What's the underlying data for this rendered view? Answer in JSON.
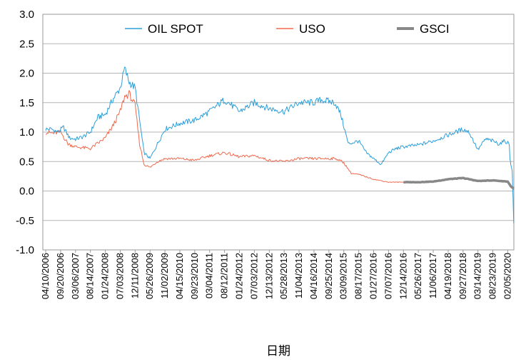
{
  "chart_data": {
    "type": "line",
    "title": "",
    "xlabel": "日期",
    "ylabel": "",
    "ylim": [
      -1.0,
      3.0
    ],
    "y_ticks": [
      "3.0",
      "2.5",
      "2.0",
      "1.5",
      "1.0",
      "0.5",
      "0.0",
      "-0.5",
      "-1.0"
    ],
    "y_tick_values": [
      3.0,
      2.5,
      2.0,
      1.5,
      1.0,
      0.5,
      0.0,
      -0.5,
      -1.0
    ],
    "categories": [
      "04/10/2006",
      "09/20/2006",
      "03/06/2007",
      "08/14/2007",
      "01/24/2008",
      "07/03/2008",
      "12/11/2008",
      "05/26/2009",
      "11/02/2009",
      "04/15/2010",
      "09/23/2010",
      "03/04/2011",
      "08/12/2011",
      "01/24/2012",
      "07/03/2012",
      "12/13/2012",
      "05/28/2013",
      "11/04/2013",
      "04/16/2014",
      "09/25/2014",
      "03/09/2015",
      "08/17/2015",
      "01/27/2016",
      "07/07/2016",
      "12/14/2016",
      "05/26/2017",
      "11/06/2017",
      "04/19/2018",
      "09/27/2018",
      "03/14/2019",
      "08/23/2019",
      "02/05/2020"
    ],
    "grid": true,
    "legend_position": "top",
    "series": [
      {
        "name": "OIL SPOT",
        "color": "#2e9fd8",
        "x": [
          0,
          0.4,
          0.8,
          1.2,
          1.6,
          2,
          2.5,
          3,
          3.5,
          4,
          4.5,
          5,
          5.3,
          5.6,
          6,
          6.3,
          6.6,
          7,
          7.5,
          8,
          8.5,
          9,
          10,
          11,
          12,
          13,
          14,
          15,
          16,
          17,
          18,
          18.5,
          19,
          19.4,
          19.8,
          20.3,
          21,
          21.5,
          22,
          22.5,
          23,
          23.5,
          24,
          25,
          26,
          27,
          28,
          28.4,
          29,
          29.5,
          30,
          30.4,
          30.8,
          31,
          31.1,
          31.15,
          31.2,
          31.3,
          31.4
        ],
        "values": [
          1.05,
          1.05,
          1.0,
          1.08,
          0.9,
          0.88,
          0.92,
          1.0,
          1.25,
          1.3,
          1.55,
          1.75,
          2.08,
          1.85,
          1.75,
          1.2,
          0.65,
          0.55,
          0.8,
          1.05,
          1.1,
          1.15,
          1.2,
          1.35,
          1.55,
          1.35,
          1.5,
          1.4,
          1.35,
          1.5,
          1.5,
          1.55,
          1.52,
          1.5,
          1.3,
          0.8,
          0.85,
          0.65,
          0.55,
          0.45,
          0.65,
          0.72,
          0.75,
          0.78,
          0.85,
          0.95,
          1.05,
          1.0,
          0.7,
          0.88,
          0.85,
          0.8,
          0.85,
          0.82,
          0.8,
          0.55,
          0.45,
          0.35,
          -0.55
        ]
      },
      {
        "name": "USO",
        "color": "#f06a4e",
        "x": [
          0,
          0.5,
          1,
          1.5,
          2,
          3,
          4,
          4.5,
          5,
          5.3,
          5.6,
          6,
          6.3,
          6.6,
          7,
          7.5,
          8,
          9,
          10,
          11,
          12,
          13,
          14,
          15,
          16,
          17,
          18,
          18.5,
          19,
          19.5,
          20,
          20.5,
          21,
          22,
          23,
          24,
          25,
          26,
          27,
          28,
          29,
          30,
          31,
          31.1,
          31.2,
          31.4
        ],
        "values": [
          1.0,
          0.98,
          1.0,
          0.8,
          0.75,
          0.72,
          0.9,
          1.1,
          1.35,
          1.6,
          1.65,
          1.45,
          0.8,
          0.45,
          0.4,
          0.5,
          0.55,
          0.55,
          0.52,
          0.6,
          0.65,
          0.58,
          0.6,
          0.52,
          0.5,
          0.55,
          0.55,
          0.55,
          0.55,
          0.55,
          0.48,
          0.3,
          0.28,
          0.2,
          0.15,
          0.15,
          0.14,
          0.16,
          0.2,
          0.22,
          0.18,
          0.18,
          0.17,
          0.12,
          0.08,
          0.02
        ]
      },
      {
        "name": "GSCI",
        "color": "#888888",
        "x": [
          24,
          25,
          26,
          27,
          28,
          29,
          30,
          31,
          31.2,
          31.4
        ],
        "values": [
          0.15,
          0.15,
          0.16,
          0.2,
          0.22,
          0.17,
          0.18,
          0.16,
          0.08,
          0.04
        ]
      }
    ]
  }
}
